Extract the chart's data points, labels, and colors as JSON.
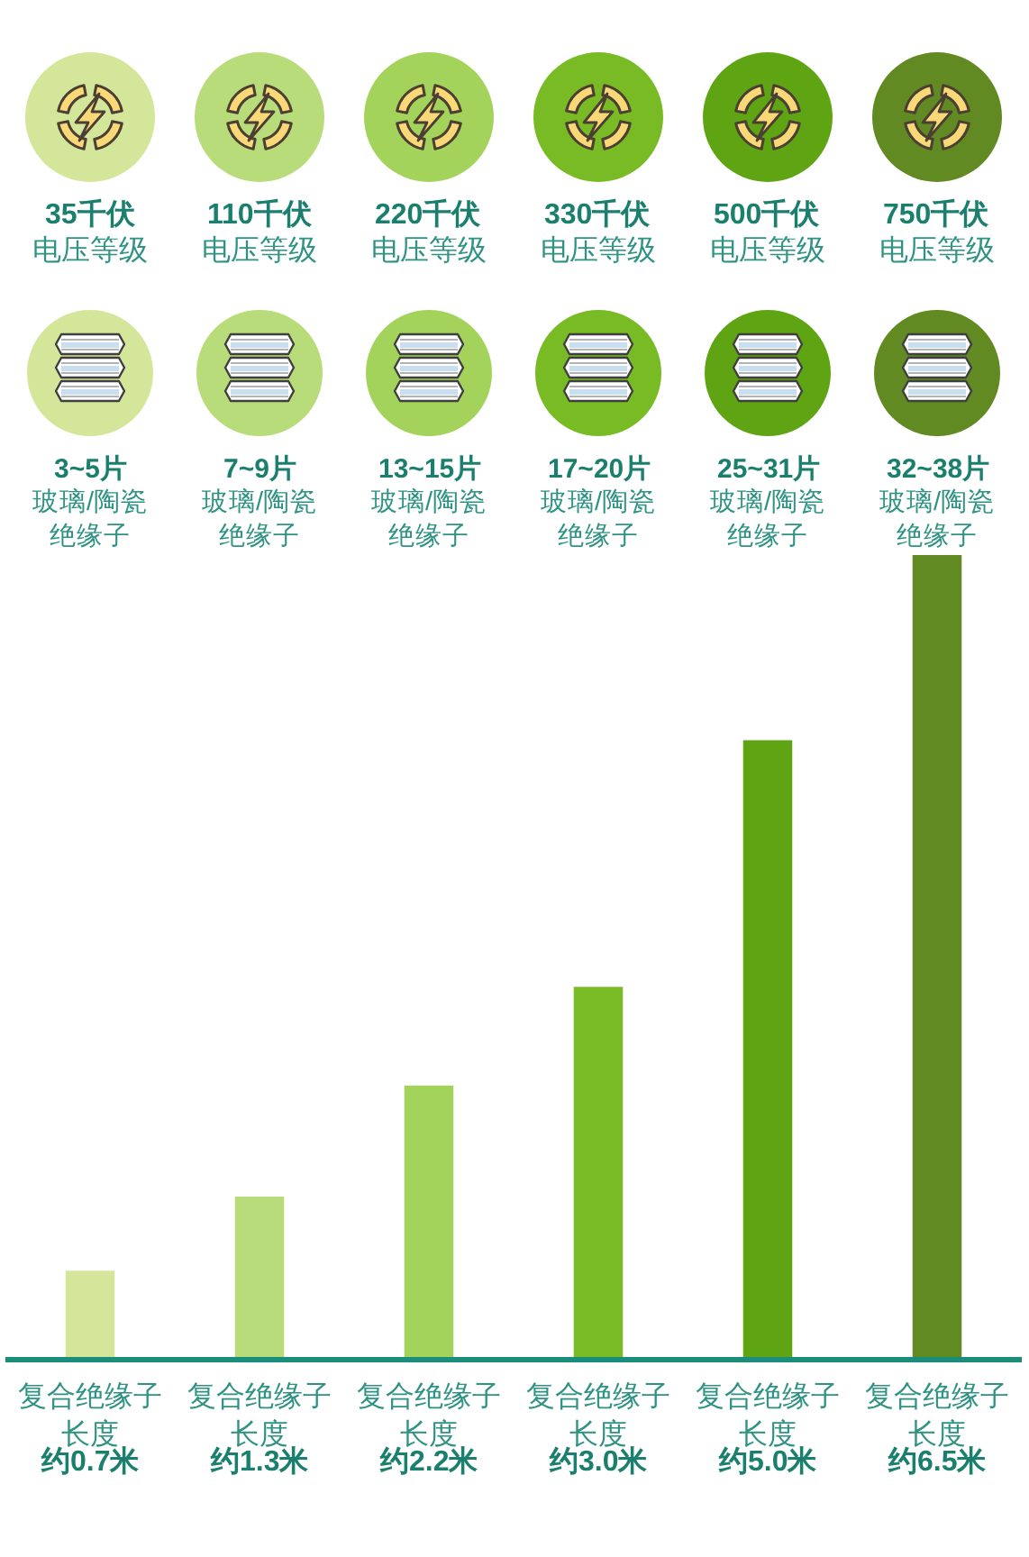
{
  "chart_data": {
    "type": "bar",
    "categories": [
      "复合绝缘子长度",
      "复合绝缘子长度",
      "复合绝缘子长度",
      "复合绝缘子长度",
      "复合绝缘子长度",
      "复合绝缘子长度"
    ],
    "values": [
      0.7,
      1.3,
      2.2,
      3.0,
      5.0,
      6.5
    ],
    "value_labels": [
      "约0.7米",
      "约1.3米",
      "约2.2米",
      "约3.0米",
      "约5.0米",
      "约6.5米"
    ],
    "colors": [
      "#d4e69a",
      "#b9dc7b",
      "#a4d35c",
      "#78bb25",
      "#5fa513",
      "#628a22"
    ],
    "ylim": [
      0,
      6.5
    ],
    "tick_labels": "x",
    "annotations": [
      "35千伏",
      "110千伏",
      "220千伏",
      "330千伏",
      "500千伏",
      "750千伏",
      "电压等级",
      "电压等级",
      "电压等级",
      "电压等级",
      "电压等级",
      "电压等级",
      "3~5片",
      "7~9片",
      "13~15片",
      "17~20片",
      "25~31片",
      "32~38片",
      "玻璃/陶瓷绝缘子",
      "玻璃/陶瓷绝缘子",
      "玻璃/陶瓷绝缘子",
      "玻璃/陶瓷绝缘子",
      "玻璃/陶瓷绝缘子",
      "玻璃/陶瓷绝缘子"
    ]
  }
}
